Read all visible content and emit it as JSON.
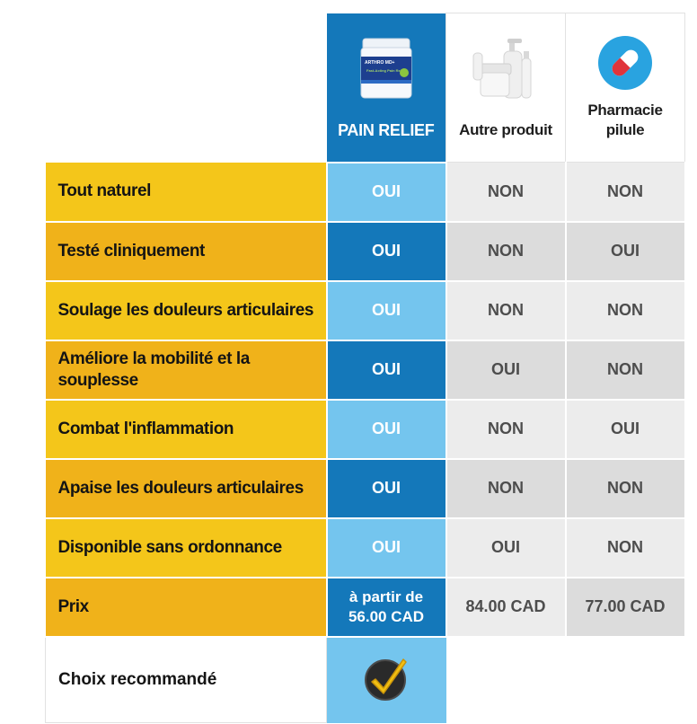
{
  "header": {
    "main_product": "PAIN RELIEF",
    "other_product": "Autre produit",
    "pharmacy_line1": "Pharmacie",
    "pharmacy_line2": "pilule",
    "jar_brand": "ARTHRO MD+",
    "jar_text": "Fast-Acting Pain Relief"
  },
  "rows": [
    {
      "feature": "Tout naturel",
      "main": "OUI",
      "other": "NON",
      "pharmacy": "NON"
    },
    {
      "feature": "Testé cliniquement",
      "main": "OUI",
      "other": "NON",
      "pharmacy": "OUI"
    },
    {
      "feature": "Soulage les douleurs articulaires",
      "main": "OUI",
      "other": "NON",
      "pharmacy": "NON"
    },
    {
      "feature": "Améliore la mobilité et la souplesse",
      "main": "OUI",
      "other": "OUI",
      "pharmacy": "NON"
    },
    {
      "feature": "Combat l'inflammation",
      "main": "OUI",
      "other": "NON",
      "pharmacy": "OUI"
    },
    {
      "feature": "Apaise les douleurs articulaires",
      "main": "OUI",
      "other": "NON",
      "pharmacy": "NON"
    },
    {
      "feature": "Disponible sans ordonnance",
      "main": "OUI",
      "other": "OUI",
      "pharmacy": "NON"
    }
  ],
  "price": {
    "label": "Prix",
    "main_line1": "à partir de",
    "main_line2": "56.00 CAD",
    "other": "84.00 CAD",
    "pharmacy": "77.00 CAD"
  },
  "recommended": {
    "label": "Choix recommandé",
    "icon": "check-badge-icon"
  },
  "colors": {
    "main_dark": "#1478ba",
    "main_light": "#74c5ee",
    "label_yellow": "#f4c61a",
    "label_orange": "#f0b21a",
    "grey_light": "#ececec",
    "grey_dark": "#dcdcdc",
    "pill_blue": "#29a3e0",
    "pill_red": "#e0343b"
  }
}
